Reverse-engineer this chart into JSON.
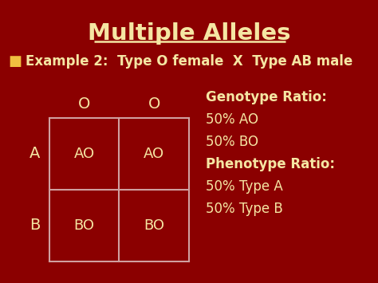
{
  "title": "Multiple Alleles",
  "subtitle": "Example 2:  Type O female  X  Type AB male",
  "bg_color": "#8B0000",
  "title_color": "#f5e6a3",
  "subtitle_color": "#f5e6a3",
  "bullet_color": "#f0c040",
  "grid_color": "#d0a0a0",
  "cell_text_color": "#f5e6a3",
  "label_color": "#f5e6a3",
  "col_headers": [
    "O",
    "O"
  ],
  "row_headers": [
    "A",
    "B"
  ],
  "cells": [
    [
      "AO",
      "AO"
    ],
    [
      "BO",
      "BO"
    ]
  ],
  "ratio_title_genotype": "Genotype Ratio:",
  "ratio_lines_genotype": [
    "50% AO",
    "50% BO"
  ],
  "ratio_title_phenotype": "Phenotype Ratio:",
  "ratio_lines_phenotype": [
    "50% Type A",
    "50% Type B"
  ]
}
